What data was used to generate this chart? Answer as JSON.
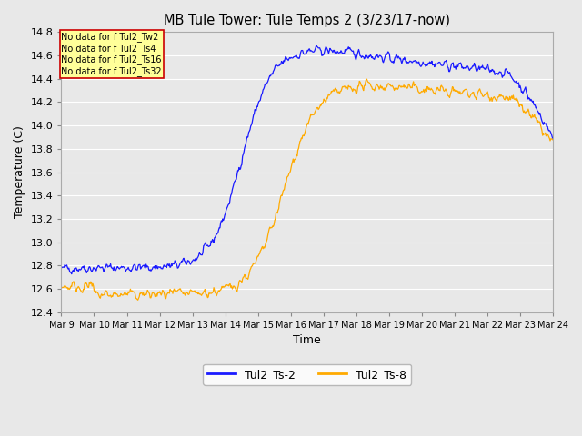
{
  "title": "MB Tule Tower: Tule Temps 2 (3/23/17-now)",
  "xlabel": "Time",
  "ylabel": "Temperature (C)",
  "ylim": [
    12.4,
    14.8
  ],
  "xlim": [
    0,
    15
  ],
  "background_color": "#e8e8e8",
  "line1_color": "#1a1aff",
  "line2_color": "#ffaa00",
  "line1_label": "Tul2_Ts-2",
  "line2_label": "Tul2_Ts-8",
  "xtick_labels": [
    "Mar 9",
    "Mar 10",
    "Mar 11",
    "Mar 12",
    "Mar 13",
    "Mar 14",
    "Mar 15",
    "Mar 16",
    "Mar 17",
    "Mar 18",
    "Mar 19",
    "Mar 20",
    "Mar 21",
    "Mar 22",
    "Mar 23",
    "Mar 24"
  ],
  "ytick_values": [
    12.4,
    12.6,
    12.8,
    13.0,
    13.2,
    13.4,
    13.6,
    13.8,
    14.0,
    14.2,
    14.4,
    14.6,
    14.8
  ],
  "no_data_lines": [
    "No data for f Tul2_Tw2",
    "No data for f Tul2_Ts4",
    "No data for f Tul2_Ts16",
    "No data for f Tul2_Ts32"
  ],
  "legend_box_color": "#ffff99",
  "legend_box_edge": "#cc0000",
  "fig_facecolor": "#e8e8e8"
}
